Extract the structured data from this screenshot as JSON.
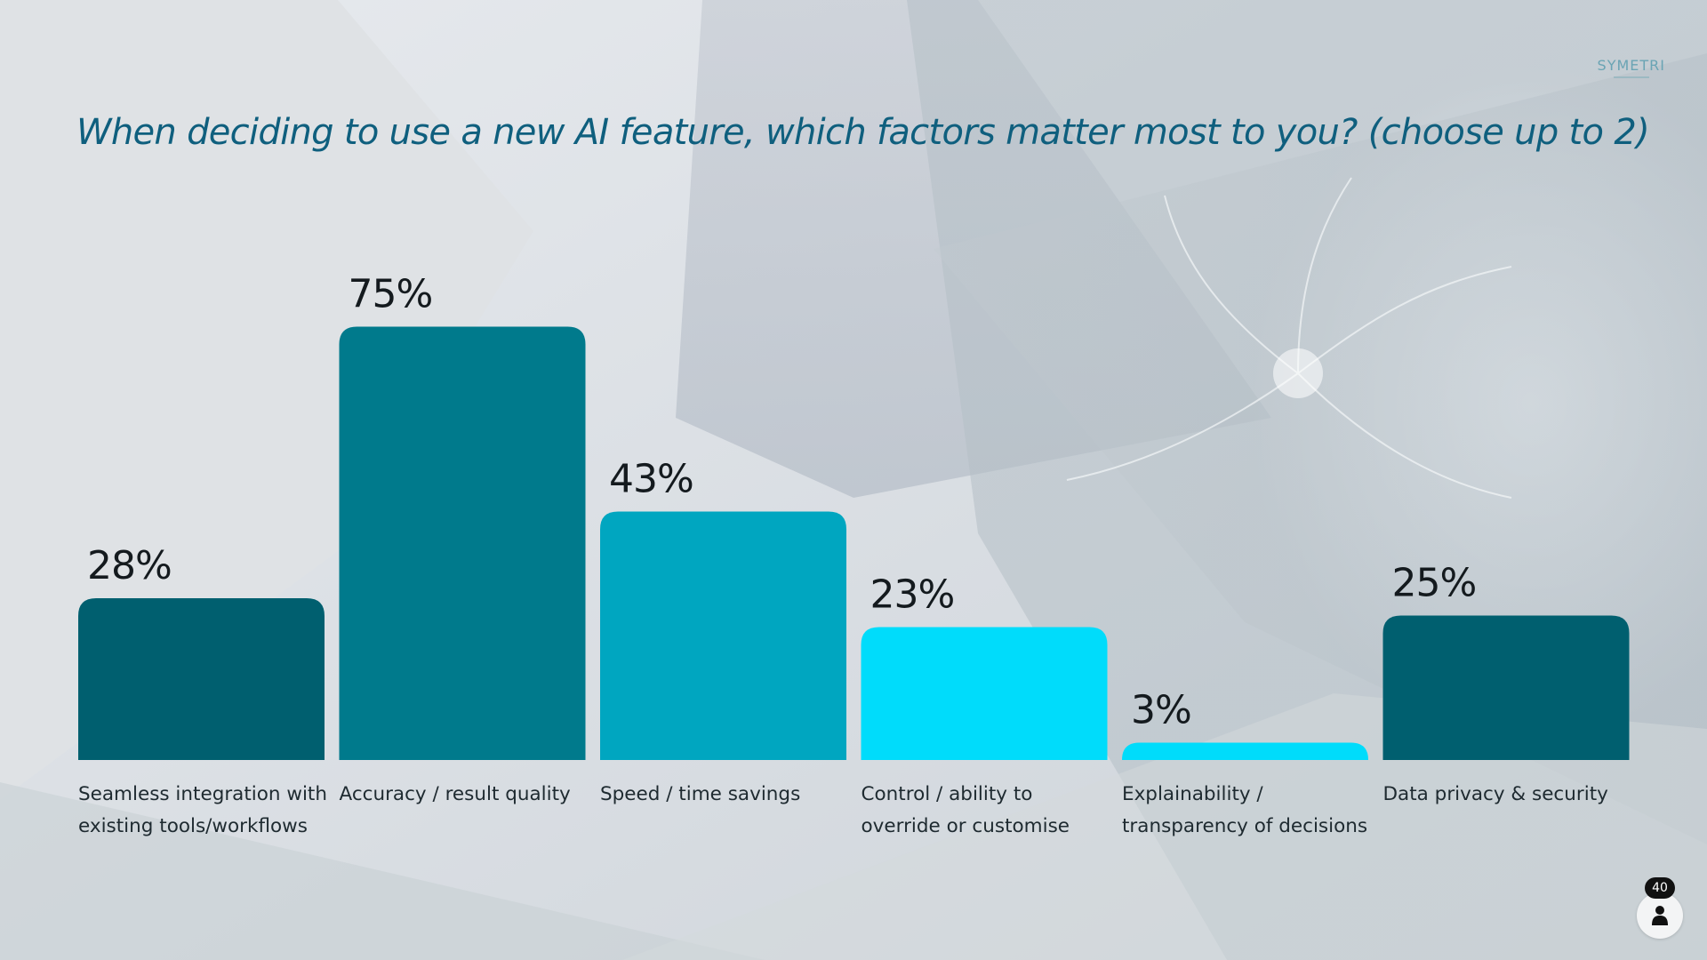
{
  "brand": {
    "logo_text": "SYMETRI"
  },
  "question": "When deciding to use a new AI feature, which factors matter most to you? (choose up to 2)",
  "participants": {
    "count": "40",
    "icon": "person-icon"
  },
  "colors": {
    "title": "#0f5f7e",
    "bars": [
      "#005f6f",
      "#007a8c",
      "#00a6c0",
      "#00dcfb",
      "#00dcfb",
      "#005f6f"
    ],
    "label_text": "#1e2a30"
  },
  "chart_data": {
    "type": "bar",
    "title": "When deciding to use a new AI feature, which factors matter most to you? (choose up to 2)",
    "categories": [
      [
        "Seamless integration with",
        "existing tools/workflows"
      ],
      [
        "Accuracy / result quality"
      ],
      [
        "Speed / time savings"
      ],
      [
        "Control / ability to",
        "override or customise"
      ],
      [
        "Explainability /",
        "transparency of decisions"
      ],
      [
        "Data privacy & security"
      ]
    ],
    "values": [
      28,
      75,
      43,
      23,
      3,
      25
    ],
    "value_labels": [
      "28%",
      "75%",
      "43%",
      "23%",
      "3%",
      "25%"
    ],
    "unit": "%",
    "ylim": [
      0,
      100
    ],
    "grid": false,
    "legend": "none",
    "xlabel": "",
    "ylabel": ""
  }
}
